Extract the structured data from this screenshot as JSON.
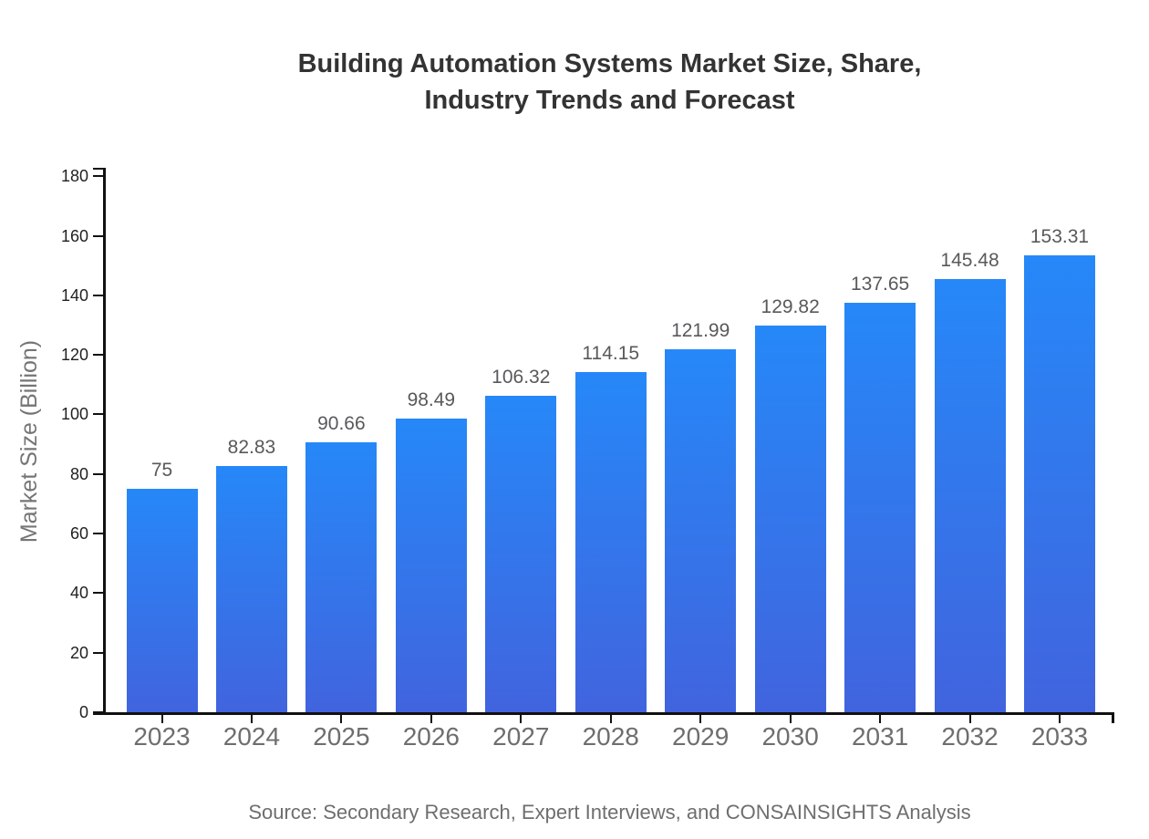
{
  "title": {
    "line1": "Building Automation Systems Market Size, Share,",
    "line2": "Industry Trends and Forecast"
  },
  "source": "Source: Secondary Research, Expert Interviews, and CONSAINSIGHTS Analysis",
  "chart_data": {
    "type": "bar",
    "title": "Building Automation Systems Market Size, Share, Industry Trends and Forecast",
    "categories": [
      "2023",
      "2024",
      "2025",
      "2026",
      "2027",
      "2028",
      "2029",
      "2030",
      "2031",
      "2032",
      "2033"
    ],
    "values": [
      75,
      82.83,
      90.66,
      98.49,
      106.32,
      114.15,
      121.99,
      129.82,
      137.65,
      145.48,
      153.31
    ],
    "value_labels": [
      "75",
      "82.83",
      "90.66",
      "98.49",
      "106.32",
      "114.15",
      "121.99",
      "129.82",
      "137.65",
      "145.48",
      "153.31"
    ],
    "xlabel": "",
    "ylabel": "Market Size (Billion)",
    "ylim": [
      0,
      180
    ],
    "yticks": [
      0,
      20,
      40,
      60,
      80,
      100,
      120,
      140,
      160,
      180
    ],
    "grid": false,
    "legend": "none",
    "colors": {
      "bar_gradient_top": "#2688f8",
      "bar_gradient_bottom": "#4164de",
      "axis": "#111111",
      "ytick_label": "#1f1f1f",
      "xtick_label": "#6e6e6e",
      "value_label": "#58595b",
      "title": "#333333",
      "axis_title": "#757575",
      "source": "#6e6e6e"
    }
  }
}
